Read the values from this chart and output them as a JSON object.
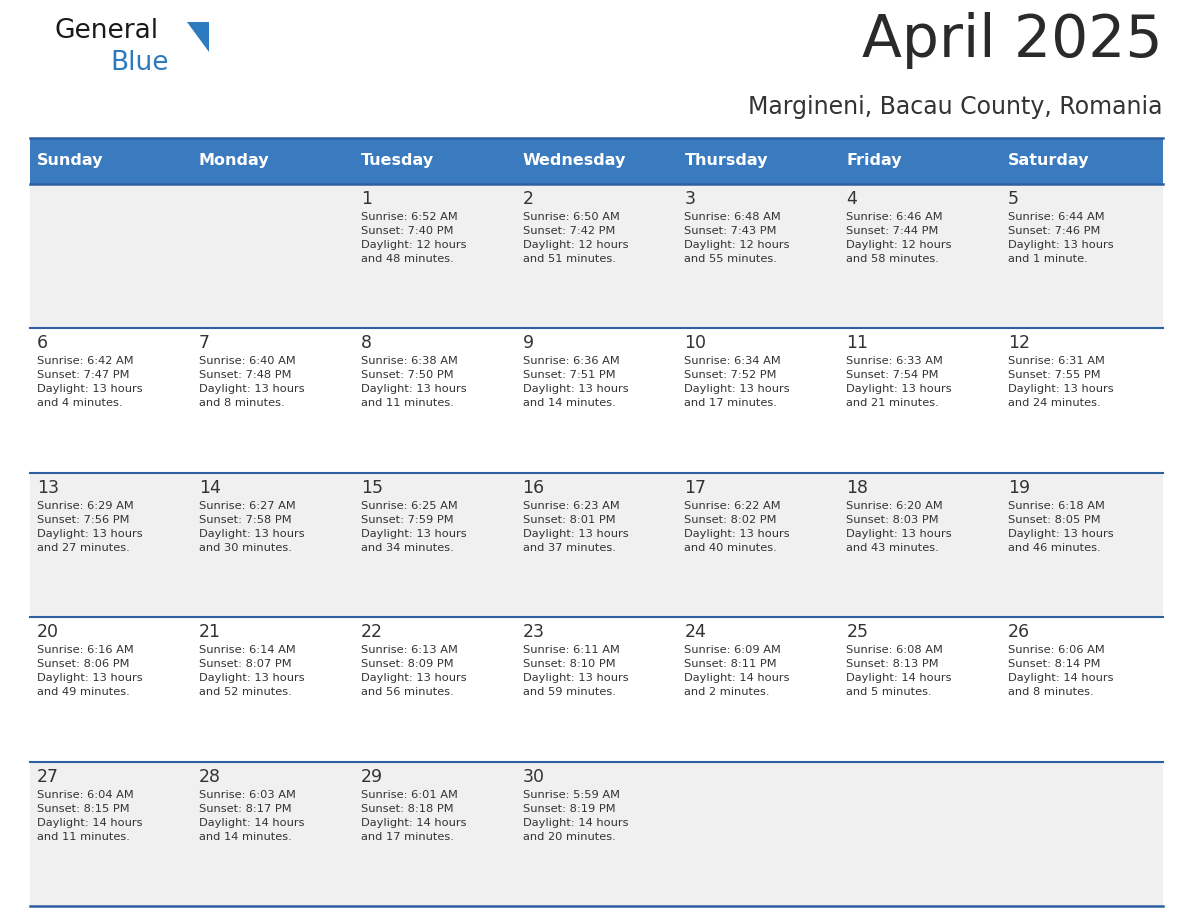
{
  "title": "April 2025",
  "subtitle": "Margineni, Bacau County, Romania",
  "header_bg": "#3a7abf",
  "header_text": "#ffffff",
  "row_bg_odd": "#f0f0f0",
  "row_bg_even": "#ffffff",
  "separator_color": "#2e5fa3",
  "text_color": "#333333",
  "days_of_week": [
    "Sunday",
    "Monday",
    "Tuesday",
    "Wednesday",
    "Thursday",
    "Friday",
    "Saturday"
  ],
  "weeks": [
    [
      {
        "day": "",
        "info": ""
      },
      {
        "day": "",
        "info": ""
      },
      {
        "day": "1",
        "info": "Sunrise: 6:52 AM\nSunset: 7:40 PM\nDaylight: 12 hours\nand 48 minutes."
      },
      {
        "day": "2",
        "info": "Sunrise: 6:50 AM\nSunset: 7:42 PM\nDaylight: 12 hours\nand 51 minutes."
      },
      {
        "day": "3",
        "info": "Sunrise: 6:48 AM\nSunset: 7:43 PM\nDaylight: 12 hours\nand 55 minutes."
      },
      {
        "day": "4",
        "info": "Sunrise: 6:46 AM\nSunset: 7:44 PM\nDaylight: 12 hours\nand 58 minutes."
      },
      {
        "day": "5",
        "info": "Sunrise: 6:44 AM\nSunset: 7:46 PM\nDaylight: 13 hours\nand 1 minute."
      }
    ],
    [
      {
        "day": "6",
        "info": "Sunrise: 6:42 AM\nSunset: 7:47 PM\nDaylight: 13 hours\nand 4 minutes."
      },
      {
        "day": "7",
        "info": "Sunrise: 6:40 AM\nSunset: 7:48 PM\nDaylight: 13 hours\nand 8 minutes."
      },
      {
        "day": "8",
        "info": "Sunrise: 6:38 AM\nSunset: 7:50 PM\nDaylight: 13 hours\nand 11 minutes."
      },
      {
        "day": "9",
        "info": "Sunrise: 6:36 AM\nSunset: 7:51 PM\nDaylight: 13 hours\nand 14 minutes."
      },
      {
        "day": "10",
        "info": "Sunrise: 6:34 AM\nSunset: 7:52 PM\nDaylight: 13 hours\nand 17 minutes."
      },
      {
        "day": "11",
        "info": "Sunrise: 6:33 AM\nSunset: 7:54 PM\nDaylight: 13 hours\nand 21 minutes."
      },
      {
        "day": "12",
        "info": "Sunrise: 6:31 AM\nSunset: 7:55 PM\nDaylight: 13 hours\nand 24 minutes."
      }
    ],
    [
      {
        "day": "13",
        "info": "Sunrise: 6:29 AM\nSunset: 7:56 PM\nDaylight: 13 hours\nand 27 minutes."
      },
      {
        "day": "14",
        "info": "Sunrise: 6:27 AM\nSunset: 7:58 PM\nDaylight: 13 hours\nand 30 minutes."
      },
      {
        "day": "15",
        "info": "Sunrise: 6:25 AM\nSunset: 7:59 PM\nDaylight: 13 hours\nand 34 minutes."
      },
      {
        "day": "16",
        "info": "Sunrise: 6:23 AM\nSunset: 8:01 PM\nDaylight: 13 hours\nand 37 minutes."
      },
      {
        "day": "17",
        "info": "Sunrise: 6:22 AM\nSunset: 8:02 PM\nDaylight: 13 hours\nand 40 minutes."
      },
      {
        "day": "18",
        "info": "Sunrise: 6:20 AM\nSunset: 8:03 PM\nDaylight: 13 hours\nand 43 minutes."
      },
      {
        "day": "19",
        "info": "Sunrise: 6:18 AM\nSunset: 8:05 PM\nDaylight: 13 hours\nand 46 minutes."
      }
    ],
    [
      {
        "day": "20",
        "info": "Sunrise: 6:16 AM\nSunset: 8:06 PM\nDaylight: 13 hours\nand 49 minutes."
      },
      {
        "day": "21",
        "info": "Sunrise: 6:14 AM\nSunset: 8:07 PM\nDaylight: 13 hours\nand 52 minutes."
      },
      {
        "day": "22",
        "info": "Sunrise: 6:13 AM\nSunset: 8:09 PM\nDaylight: 13 hours\nand 56 minutes."
      },
      {
        "day": "23",
        "info": "Sunrise: 6:11 AM\nSunset: 8:10 PM\nDaylight: 13 hours\nand 59 minutes."
      },
      {
        "day": "24",
        "info": "Sunrise: 6:09 AM\nSunset: 8:11 PM\nDaylight: 14 hours\nand 2 minutes."
      },
      {
        "day": "25",
        "info": "Sunrise: 6:08 AM\nSunset: 8:13 PM\nDaylight: 14 hours\nand 5 minutes."
      },
      {
        "day": "26",
        "info": "Sunrise: 6:06 AM\nSunset: 8:14 PM\nDaylight: 14 hours\nand 8 minutes."
      }
    ],
    [
      {
        "day": "27",
        "info": "Sunrise: 6:04 AM\nSunset: 8:15 PM\nDaylight: 14 hours\nand 11 minutes."
      },
      {
        "day": "28",
        "info": "Sunrise: 6:03 AM\nSunset: 8:17 PM\nDaylight: 14 hours\nand 14 minutes."
      },
      {
        "day": "29",
        "info": "Sunrise: 6:01 AM\nSunset: 8:18 PM\nDaylight: 14 hours\nand 17 minutes."
      },
      {
        "day": "30",
        "info": "Sunrise: 5:59 AM\nSunset: 8:19 PM\nDaylight: 14 hours\nand 20 minutes."
      },
      {
        "day": "",
        "info": ""
      },
      {
        "day": "",
        "info": ""
      },
      {
        "day": "",
        "info": ""
      }
    ]
  ]
}
